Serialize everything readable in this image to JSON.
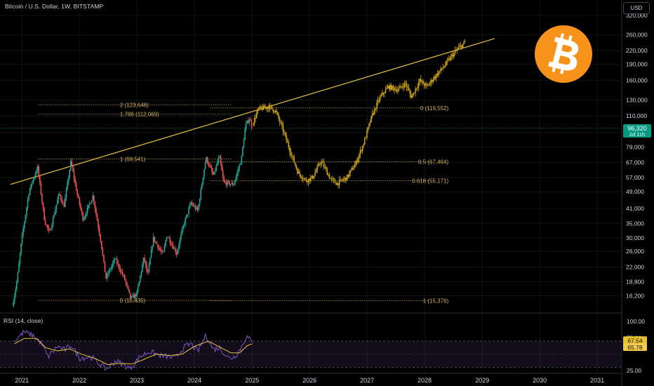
{
  "header": {
    "symbol_title": "Bitcoin / U.S. Dollar, 1W, BITSTAMP",
    "currency": "USD"
  },
  "current_price": {
    "value": "96,320",
    "countdown": "2d 11h",
    "color": "#089981"
  },
  "logo": {
    "icon": "bitcoin-logo-icon",
    "color": "#f7931a"
  },
  "colors": {
    "background": "#000000",
    "up": "#26a69a",
    "down": "#ef5350",
    "projection": "#c9a21b",
    "trendline": "#d8b43e",
    "fib": "#d4b35e",
    "rsi_line": "#7e57c2",
    "rsi_ma": "#e8c22e"
  },
  "chart_data": [
    {
      "type": "candlestick",
      "title": "",
      "x_axis": {
        "type": "time",
        "range": [
          "2020-08-15",
          "2031-06-01"
        ],
        "tick_labels": [
          "2021",
          "2022",
          "2023",
          "2024",
          "2025",
          "2026",
          "2027",
          "2028",
          "2029",
          "2030",
          "2031"
        ]
      },
      "y_axis": {
        "scale": "log",
        "range": [
          13900,
          355000
        ],
        "tick_labels": [
          "320,000",
          "260,000",
          "220,000",
          "190,000",
          "160,000",
          "130,000",
          "110,000",
          "92,000",
          "79,000",
          "67,000",
          "57,000",
          "49,000",
          "41,000",
          "35,000",
          "30,000",
          "26,000",
          "22,000",
          "18,800",
          "16,200"
        ]
      },
      "grid": true,
      "price_path": [
        [
          "2020-11-01",
          14500
        ],
        [
          "2020-12-01",
          19000
        ],
        [
          "2021-01-01",
          30000
        ],
        [
          "2021-02-15",
          49000
        ],
        [
          "2021-04-10",
          64000
        ],
        [
          "2021-05-25",
          36000
        ],
        [
          "2021-06-25",
          31500
        ],
        [
          "2021-08-25",
          48000
        ],
        [
          "2021-09-25",
          42000
        ],
        [
          "2021-11-08",
          67500
        ],
        [
          "2021-12-20",
          47000
        ],
        [
          "2022-01-25",
          36500
        ],
        [
          "2022-03-28",
          47000
        ],
        [
          "2022-05-15",
          29500
        ],
        [
          "2022-06-18",
          19500
        ],
        [
          "2022-08-15",
          24000
        ],
        [
          "2022-10-15",
          19400
        ],
        [
          "2022-11-21",
          15700
        ],
        [
          "2022-12-31",
          16500
        ],
        [
          "2023-02-15",
          24500
        ],
        [
          "2023-03-10",
          20000
        ],
        [
          "2023-04-15",
          30000
        ],
        [
          "2023-06-15",
          25000
        ],
        [
          "2023-07-10",
          31000
        ],
        [
          "2023-09-10",
          25500
        ],
        [
          "2023-10-25",
          34500
        ],
        [
          "2023-12-10",
          43500
        ],
        [
          "2024-01-22",
          40000
        ],
        [
          "2024-03-14",
          70500
        ],
        [
          "2024-05-01",
          58000
        ],
        [
          "2024-06-07",
          71500
        ],
        [
          "2024-07-05",
          54000
        ],
        [
          "2024-08-05",
          53500
        ],
        [
          "2024-09-06",
          53000
        ],
        [
          "2024-10-25",
          69000
        ],
        [
          "2024-11-20",
          99000
        ],
        [
          "2024-12-16",
          107000
        ],
        [
          "2025-01-02",
          96320
        ]
      ],
      "candles": {
        "volatility": 0.045,
        "count_per_year": 52
      },
      "projection": {
        "label": "",
        "color": "#c9a21b",
        "path": [
          [
            "2025-01-02",
            100000
          ],
          [
            "2025-02-10",
            118000
          ],
          [
            "2025-04-20",
            121000
          ],
          [
            "2025-06-01",
            115000
          ],
          [
            "2025-07-15",
            95000
          ],
          [
            "2025-09-01",
            75000
          ],
          [
            "2025-10-20",
            60000
          ],
          [
            "2025-12-10",
            55200
          ],
          [
            "2026-01-20",
            57000
          ],
          [
            "2026-03-15",
            68000
          ],
          [
            "2026-05-15",
            56000
          ],
          [
            "2026-06-25",
            53500
          ],
          [
            "2026-08-25",
            57000
          ],
          [
            "2026-10-20",
            66000
          ],
          [
            "2026-12-10",
            82000
          ],
          [
            "2027-02-01",
            110000
          ],
          [
            "2027-03-20",
            132000
          ],
          [
            "2027-05-15",
            150000
          ],
          [
            "2027-07-15",
            145000
          ],
          [
            "2027-09-01",
            155000
          ],
          [
            "2027-10-10",
            134000
          ],
          [
            "2027-12-01",
            160000
          ],
          [
            "2028-01-15",
            150000
          ],
          [
            "2028-03-01",
            165000
          ],
          [
            "2028-05-01",
            185000
          ],
          [
            "2028-06-15",
            205000
          ],
          [
            "2028-08-01",
            225000
          ],
          [
            "2028-09-15",
            240000
          ]
        ]
      },
      "trendline": {
        "from": [
          "2020-10-20",
          53000
        ],
        "to": [
          "2029-03-20",
          250000
        ],
        "color": "#d8b43e"
      },
      "fib_left": {
        "x_start": "2021-04-15",
        "x_label": "2024-09-05",
        "levels": [
          {
            "ratio_label": "2 (123,648)",
            "price": 123648
          },
          {
            "ratio_label": "1.786 (112,069)",
            "price": 112069
          },
          {
            "ratio_label": "1 (69,541)",
            "price": 69541
          },
          {
            "ratio_label": "0 (15,435)",
            "price": 15435
          }
        ]
      },
      "fib_right": {
        "x_start": "2024-04-10",
        "x_end": "2028-02-01",
        "x_label": "2028-06-01",
        "levels": [
          {
            "ratio_label": "0 (119,552)",
            "price": 119552
          },
          {
            "ratio_label": "0.5 (67,464)",
            "price": 67464
          },
          {
            "ratio_label": "0.618 (55,171)",
            "price": 55171
          },
          {
            "ratio_label": "1 (15,376)",
            "price": 15376
          }
        ]
      }
    },
    {
      "type": "line",
      "title": "RSI (14, close)",
      "y_axis": {
        "range": [
          25,
          100
        ],
        "tick_labels": [
          "100.00",
          "75.00",
          "25.00"
        ],
        "band": [
          30,
          70
        ]
      },
      "series": [
        {
          "name": "RSI",
          "color": "#7e57c2",
          "values": [
            [
              "2020-11-15",
              70
            ],
            [
              "2021-01-15",
              84
            ],
            [
              "2021-03-15",
              78
            ],
            [
              "2021-05-01",
              68
            ],
            [
              "2021-06-15",
              46
            ],
            [
              "2021-08-15",
              62
            ],
            [
              "2021-10-01",
              56
            ],
            [
              "2021-11-10",
              64
            ],
            [
              "2022-01-01",
              44
            ],
            [
              "2022-03-15",
              46
            ],
            [
              "2022-05-15",
              34
            ],
            [
              "2022-06-20",
              27
            ],
            [
              "2022-08-20",
              40
            ],
            [
              "2022-11-20",
              28
            ],
            [
              "2023-01-20",
              46
            ],
            [
              "2023-03-20",
              54
            ],
            [
              "2023-06-01",
              48
            ],
            [
              "2023-09-01",
              44
            ],
            [
              "2023-10-25",
              60
            ],
            [
              "2023-12-10",
              66
            ],
            [
              "2024-01-22",
              54
            ],
            [
              "2024-03-14",
              79
            ],
            [
              "2024-05-01",
              57
            ],
            [
              "2024-06-07",
              60
            ],
            [
              "2024-08-05",
              44
            ],
            [
              "2024-09-10",
              46
            ],
            [
              "2024-10-20",
              58
            ],
            [
              "2024-11-25",
              77
            ],
            [
              "2024-12-15",
              73
            ],
            [
              "2025-01-02",
              67.54
            ]
          ]
        },
        {
          "name": "RSI-based MA",
          "color": "#e8c22e",
          "values": [
            [
              "2020-11-15",
              66
            ],
            [
              "2021-01-15",
              74
            ],
            [
              "2021-04-01",
              74
            ],
            [
              "2021-06-01",
              60
            ],
            [
              "2021-08-15",
              55
            ],
            [
              "2021-11-01",
              58
            ],
            [
              "2022-01-15",
              50
            ],
            [
              "2022-04-15",
              43
            ],
            [
              "2022-07-01",
              34
            ],
            [
              "2022-09-15",
              36
            ],
            [
              "2022-12-01",
              35
            ],
            [
              "2023-02-15",
              42
            ],
            [
              "2023-05-01",
              50
            ],
            [
              "2023-08-01",
              48
            ],
            [
              "2023-10-15",
              50
            ],
            [
              "2024-01-01",
              62
            ],
            [
              "2024-03-30",
              70
            ],
            [
              "2024-06-01",
              62
            ],
            [
              "2024-08-20",
              52
            ],
            [
              "2024-10-15",
              52
            ],
            [
              "2024-12-01",
              63
            ],
            [
              "2025-01-02",
              65.78
            ]
          ]
        }
      ],
      "value_labels": [
        {
          "text": "67.54",
          "color": "#e8c22e"
        },
        {
          "text": "65.78",
          "color": "#f2c94c"
        }
      ]
    }
  ]
}
